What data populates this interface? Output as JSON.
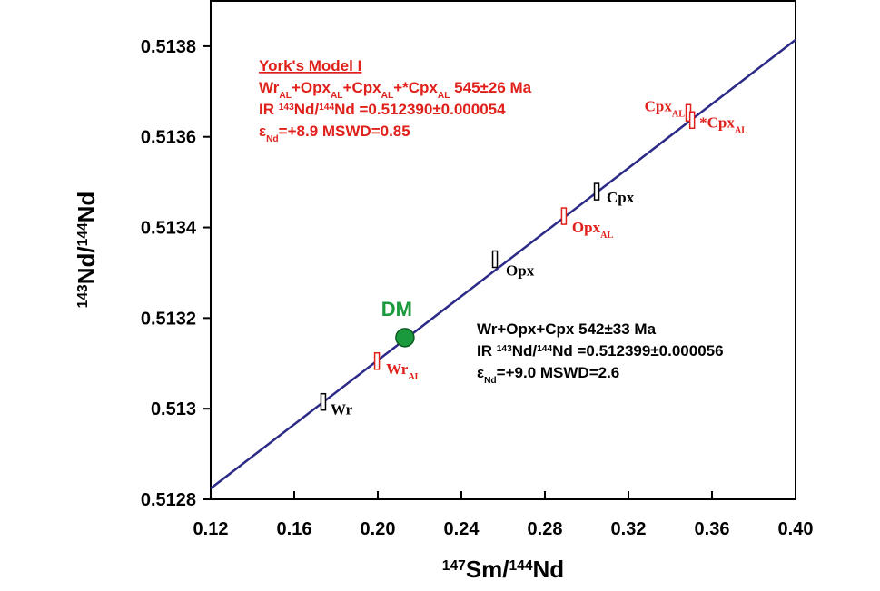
{
  "chart_data": {
    "type": "scatter",
    "x_label": [
      {
        "sup": "147"
      },
      {
        "text": "Sm/"
      },
      {
        "sup": "144"
      },
      {
        "text": "Nd"
      }
    ],
    "y_label": [
      {
        "sup": "143"
      },
      {
        "text": "Nd/"
      },
      {
        "sup": "144"
      },
      {
        "text": "Nd"
      }
    ],
    "xlim": [
      0.12,
      0.4
    ],
    "ylim": [
      0.5128,
      0.5139
    ],
    "xticks": [
      0.12,
      0.16,
      {
        "value": 0.2,
        "label": "0.20"
      },
      0.24,
      0.28,
      0.32,
      0.36,
      {
        "value": 0.4,
        "label": "0.40"
      }
    ],
    "yticks": [
      0.5128,
      0.513,
      0.5132,
      0.5134,
      0.5136,
      0.5138
    ],
    "fit_line": {
      "x": [
        0.12,
        0.4
      ],
      "values": [
        0.512824,
        0.513814
      ],
      "color": "#2b2a86"
    },
    "series": [
      {
        "label": [
          {
            "text": "Wr"
          }
        ],
        "color": "#000000",
        "marker": "box",
        "x": [
          0.1739
        ],
        "values": [
          0.513015
        ]
      },
      {
        "label": [
          {
            "text": "Wr"
          },
          {
            "sub": "AL"
          }
        ],
        "color": "#e0201b",
        "marker": "box",
        "x": [
          0.1996
        ],
        "values": [
          0.513105
        ]
      },
      {
        "label": [
          {
            "text": "Opx"
          }
        ],
        "color": "#000000",
        "marker": "box",
        "x": [
          0.2561
        ],
        "values": [
          0.51333
        ]
      },
      {
        "label": [
          {
            "text": "Opx"
          },
          {
            "sub": "AL"
          }
        ],
        "color": "#e0201b",
        "marker": "box",
        "x": [
          0.2891
        ],
        "values": [
          0.513425
        ]
      },
      {
        "label": [
          {
            "text": "Cpx"
          }
        ],
        "color": "#000000",
        "marker": "box",
        "x": [
          0.3048
        ],
        "values": [
          0.513479
        ]
      },
      {
        "label": [
          {
            "text": "Cpx"
          },
          {
            "sub": "AL"
          }
        ],
        "color": "#e0201b",
        "marker": "box",
        "x": [
          0.3487
        ],
        "values": [
          0.513653
        ]
      },
      {
        "label": [
          {
            "text": "*Cpx"
          },
          {
            "sub": "AL"
          }
        ],
        "color": "#e0201b",
        "marker": "box",
        "x": [
          0.3505
        ],
        "values": [
          0.513637
        ]
      },
      {
        "label": [
          {
            "text": "DM"
          }
        ],
        "color": "#1a9a3c",
        "marker": "circle",
        "x": [
          0.213
        ],
        "values": [
          0.513157
        ]
      }
    ],
    "annotations": [
      {
        "color": "#e0201b",
        "underline_first": true,
        "lines": [
          [
            {
              "text": "York's Model I"
            }
          ],
          [
            {
              "text": "Wr"
            },
            {
              "sub": "AL"
            },
            {
              "text": "+Opx"
            },
            {
              "sub": "AL"
            },
            {
              "text": "+Cpx"
            },
            {
              "sub": "AL"
            },
            {
              "text": "+*Cpx"
            },
            {
              "sub": "AL"
            },
            {
              "text": "  545±26 Ma"
            }
          ],
          [
            {
              "text": "IR "
            },
            {
              "sup": "143"
            },
            {
              "text": "Nd/"
            },
            {
              "sup": "144"
            },
            {
              "text": "Nd =0.512390±0.000054"
            }
          ],
          [
            {
              "text": "ε"
            },
            {
              "sub": "Nd"
            },
            {
              "text": "=+8.9 MSWD=0.85"
            }
          ]
        ]
      },
      {
        "color": "#000000",
        "underline_first": false,
        "lines": [
          [
            {
              "text": "Wr+Opx+Cpx 542±33 Ma"
            }
          ],
          [
            {
              "text": "IR "
            },
            {
              "sup": "143"
            },
            {
              "text": "Nd/"
            },
            {
              "sup": "144"
            },
            {
              "text": "Nd =0.512399±0.000056"
            }
          ],
          [
            {
              "text": "ε"
            },
            {
              "sub": "Nd"
            },
            {
              "text": "=+9.0 MSWD=2.6"
            }
          ]
        ]
      }
    ]
  }
}
